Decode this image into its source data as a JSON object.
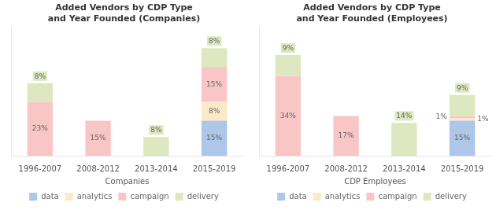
{
  "chart_data": [
    {
      "type": "bar",
      "stacked": true,
      "title": "Added Vendors by CDP Type\nand Year Founded (Companies)",
      "xlabel": "Companies",
      "categories": [
        "1996-2007",
        "2008-2012",
        "2013-2014",
        "2015-2019"
      ],
      "series": [
        {
          "name": "data",
          "color": "#aec6e8",
          "values": [
            0,
            0,
            0,
            15
          ],
          "value_labels": [
            null,
            null,
            null,
            "15%"
          ]
        },
        {
          "name": "analytics",
          "color": "#fde8c8",
          "values": [
            0,
            0,
            0,
            8
          ],
          "value_labels": [
            null,
            null,
            null,
            "8%"
          ]
        },
        {
          "name": "campaign",
          "color": "#f9c6c6",
          "values": [
            23,
            15,
            0,
            15
          ],
          "value_labels": [
            "23%",
            "15%",
            null,
            "15%"
          ]
        },
        {
          "name": "delivery",
          "color": "#dde8c0",
          "values": [
            8,
            0,
            8,
            8
          ],
          "value_labels": [
            "8%",
            null,
            "8%",
            "8%"
          ]
        }
      ],
      "ylim": [
        0,
        55
      ],
      "grid": false,
      "legend": "bottom",
      "data_labels": true,
      "tick_labels": "x"
    },
    {
      "type": "bar",
      "stacked": true,
      "title": "Added Vendors by CDP Type\nand Year Founded (Employees)",
      "xlabel": "CDP Employees",
      "categories": [
        "1996-2007",
        "2008-2012",
        "2013-2014",
        "2015-2019"
      ],
      "series": [
        {
          "name": "data",
          "color": "#aec6e8",
          "values": [
            0,
            0,
            0,
            15
          ],
          "value_labels": [
            null,
            null,
            null,
            "15%"
          ]
        },
        {
          "name": "analytics",
          "color": "#fde8c8",
          "values": [
            0,
            0,
            0,
            1
          ],
          "value_labels": [
            null,
            null,
            null,
            "1%"
          ]
        },
        {
          "name": "campaign",
          "color": "#f9c6c6",
          "values": [
            34,
            17,
            0,
            1
          ],
          "value_labels": [
            "34%",
            "17%",
            null,
            "1%"
          ]
        },
        {
          "name": "delivery",
          "color": "#dde8c0",
          "values": [
            9,
            0,
            14,
            9
          ],
          "value_labels": [
            "9%",
            null,
            "14%",
            "9%"
          ]
        }
      ],
      "ylim": [
        0,
        55
      ],
      "grid": false,
      "legend": "bottom",
      "data_labels": true,
      "tick_labels": "x"
    }
  ]
}
